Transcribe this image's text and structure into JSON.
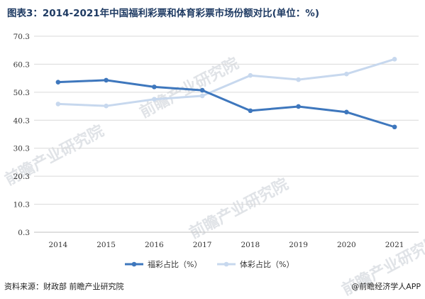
{
  "header": {
    "title": "图表3：2014-2021年中国福利彩票和体育彩票市场份额对比(单位：%)"
  },
  "footer": {
    "source": "资料来源：财政部 前瞻产业研究院",
    "brand": "@前瞻经济学人APP"
  },
  "watermark": {
    "text": "前瞻产业研究院"
  },
  "colors": {
    "welfare": "#3e77bd",
    "sports": "#c7d8ee",
    "grid": "#d9d9d9"
  },
  "chart_data": {
    "type": "line",
    "title": "图表3：2014-2021年中国福利彩票和体育彩票市场份额对比(单位：%)",
    "xlabel": "",
    "ylabel": "",
    "categories": [
      "2014",
      "2015",
      "2016",
      "2017",
      "2018",
      "2019",
      "2020",
      "2021"
    ],
    "yticks": [
      0.3,
      10.3,
      20.3,
      30.3,
      40.3,
      50.3,
      60.3,
      70.3
    ],
    "ytick_labels": [
      "0.3",
      "10.3",
      "20.3",
      "30.3",
      "40.3",
      "50.3",
      "60.3",
      "70.3"
    ],
    "ylim": [
      0.3,
      70.3
    ],
    "grid": true,
    "legend_position": "bottom",
    "series": [
      {
        "name": "福彩占比（%）",
        "values": [
          53.9,
          54.6,
          52.2,
          51.0,
          43.7,
          45.2,
          43.2,
          37.9
        ]
      },
      {
        "name": "体彩占比（%）",
        "values": [
          46.1,
          45.4,
          47.8,
          49.0,
          56.3,
          54.8,
          56.8,
          62.1
        ]
      }
    ]
  }
}
